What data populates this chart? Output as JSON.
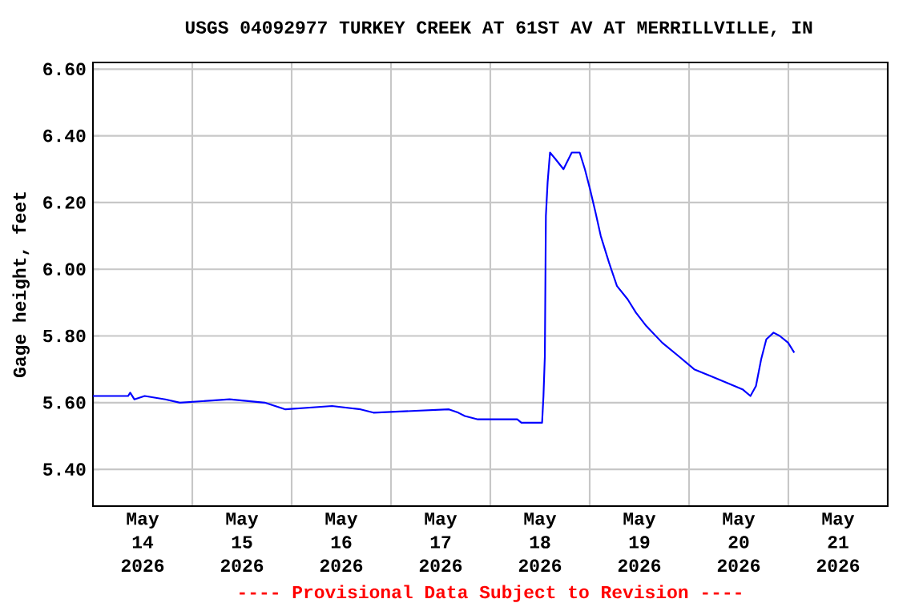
{
  "chart_data": {
    "type": "line",
    "title": "USGS 04092977 TURKEY CREEK AT 61ST AV AT MERRILLVILLE, IN",
    "ylabel": "Gage height, feet",
    "annotations": [
      "---- Provisional Data Subject to Revision ----"
    ],
    "x": [
      "2026-05-14T00:00",
      "2026-05-14T08:30",
      "2026-05-14T09:00",
      "2026-05-14T10:00",
      "2026-05-14T12:30",
      "2026-05-14T17:30",
      "2026-05-14T21:00",
      "2026-05-15T09:00",
      "2026-05-15T17:30",
      "2026-05-15T20:00",
      "2026-05-15T22:30",
      "2026-05-16T09:45",
      "2026-05-16T16:40",
      "2026-05-16T19:45",
      "2026-05-17T14:00",
      "2026-05-17T16:15",
      "2026-05-17T17:50",
      "2026-05-17T21:00",
      "2026-05-18T06:30",
      "2026-05-18T07:30",
      "2026-05-18T12:30",
      "2026-05-18T12:50",
      "2026-05-18T13:10",
      "2026-05-18T13:25",
      "2026-05-18T13:50",
      "2026-05-18T14:25",
      "2026-05-18T15:45",
      "2026-05-18T17:40",
      "2026-05-18T19:40",
      "2026-05-18T21:35",
      "2026-05-18T22:50",
      "2026-05-19T00:05",
      "2026-05-19T01:25",
      "2026-05-19T02:40",
      "2026-05-19T04:40",
      "2026-05-19T06:35",
      "2026-05-19T09:10",
      "2026-05-19T11:10",
      "2026-05-19T13:40",
      "2026-05-19T17:30",
      "2026-05-19T21:25",
      "2026-05-20T01:15",
      "2026-05-20T05:10",
      "2026-05-20T09:00",
      "2026-05-20T12:55",
      "2026-05-20T14:50",
      "2026-05-20T16:10",
      "2026-05-20T17:25",
      "2026-05-20T18:40",
      "2026-05-20T20:25",
      "2026-05-20T21:55",
      "2026-05-20T23:55",
      "2026-05-21T01:25"
    ],
    "series": [
      {
        "color": "#0000ff",
        "values": [
          5.62,
          5.62,
          5.63,
          5.61,
          5.62,
          5.61,
          5.6,
          5.61,
          5.6,
          5.59,
          5.58,
          5.59,
          5.58,
          5.57,
          5.58,
          5.57,
          5.56,
          5.55,
          5.55,
          5.54,
          5.54,
          5.62,
          5.74,
          6.16,
          6.26,
          6.35,
          6.33,
          6.3,
          6.35,
          6.35,
          6.3,
          6.24,
          6.17,
          6.1,
          6.02,
          5.95,
          5.91,
          5.87,
          5.83,
          5.78,
          5.74,
          5.7,
          5.68,
          5.66,
          5.64,
          5.62,
          5.65,
          5.73,
          5.79,
          5.81,
          5.8,
          5.78,
          5.75
        ]
      }
    ],
    "xlim": [
      "2026-05-14T00:00",
      "2026-05-22T00:00"
    ],
    "xticks": [
      {
        "value": "2026-05-14T12:00",
        "label": "May 14 2026"
      },
      {
        "value": "2026-05-15T00:00",
        "label": null
      },
      {
        "value": "2026-05-15T12:00",
        "label": "May 15 2026"
      },
      {
        "value": "2026-05-16T00:00",
        "label": null
      },
      {
        "value": "2026-05-16T12:00",
        "label": "May 16 2026"
      },
      {
        "value": "2026-05-17T00:00",
        "label": null
      },
      {
        "value": "2026-05-17T12:00",
        "label": "May 17 2026"
      },
      {
        "value": "2026-05-18T00:00",
        "label": null
      },
      {
        "value": "2026-05-18T12:00",
        "label": "May 18 2026"
      },
      {
        "value": "2026-05-19T00:00",
        "label": null
      },
      {
        "value": "2026-05-19T12:00",
        "label": "May 19 2026"
      },
      {
        "value": "2026-05-20T00:00",
        "label": null
      },
      {
        "value": "2026-05-20T12:00",
        "label": "May 20 2026"
      },
      {
        "value": "2026-05-21T00:00",
        "label": null
      },
      {
        "value": "2026-05-21T12:00",
        "label": "May 21 2026"
      }
    ],
    "ylim": [
      5.29,
      6.62
    ],
    "yticks": [
      {
        "value": 5.4,
        "label": "5.40"
      },
      {
        "value": 5.6,
        "label": "5.60"
      },
      {
        "value": 5.8,
        "label": "5.80"
      },
      {
        "value": 6.0,
        "label": "6.00"
      },
      {
        "value": 6.2,
        "label": "6.20"
      },
      {
        "value": 6.4,
        "label": "6.40"
      },
      {
        "value": 6.6,
        "label": "6.60"
      }
    ],
    "grid": true,
    "marker": "none",
    "line_style": "solid"
  }
}
